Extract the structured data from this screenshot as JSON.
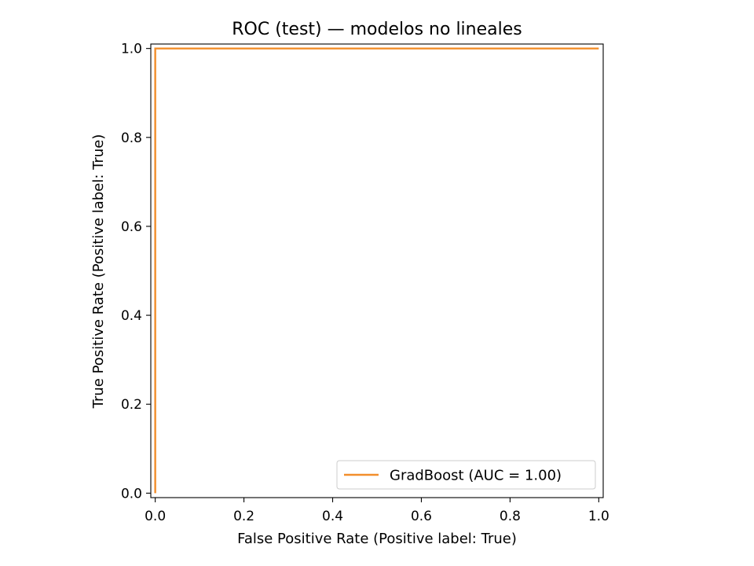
{
  "chart_data": {
    "type": "line",
    "title": "ROC (test) — modelos no lineales",
    "xlabel": "False Positive Rate (Positive label: True)",
    "ylabel": "True Positive Rate (Positive label: True)",
    "xlim": [
      -0.01,
      1.01
    ],
    "ylim": [
      -0.01,
      1.01
    ],
    "xticks": [
      0.0,
      0.2,
      0.4,
      0.6,
      0.8,
      1.0
    ],
    "xtick_labels": [
      "0.0",
      "0.2",
      "0.4",
      "0.6",
      "0.8",
      "1.0"
    ],
    "yticks": [
      0.0,
      0.2,
      0.4,
      0.6,
      0.8,
      1.0
    ],
    "ytick_labels": [
      "0.0",
      "0.2",
      "0.4",
      "0.6",
      "0.8",
      "1.0"
    ],
    "grid": false,
    "legend_position": "bottom-right",
    "series": [
      {
        "name": "GradBoost (AUC = 1.00)",
        "color": "#f28e2b",
        "x": [
          0.0,
          0.0,
          1.0
        ],
        "y": [
          0.0,
          1.0,
          1.0
        ]
      }
    ]
  }
}
